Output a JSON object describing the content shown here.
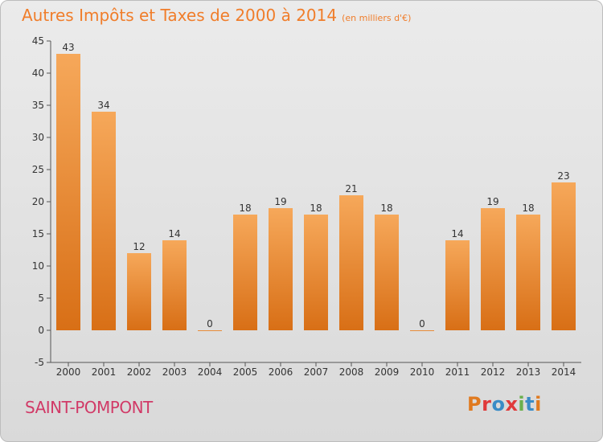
{
  "header": {
    "title": "Autres Impôts et Taxes de 2000 à 2014",
    "unit": "(en milliers d'€)"
  },
  "footer": {
    "town": "SAINT-POMPONT",
    "logo": "Proxiti"
  },
  "colors": {
    "title": "#f07d2a",
    "bar_top": "#f6a85a",
    "bar_bottom": "#d86f16",
    "town": "#d13a67",
    "background_top": "#ebebeb",
    "background_bottom": "#d9d9d9"
  },
  "chart_data": {
    "type": "bar",
    "title": "Autres Impôts et Taxes de 2000 à 2014",
    "subtitle": "(en milliers d'€)",
    "categories": [
      "2000",
      "2001",
      "2002",
      "2003",
      "2004",
      "2005",
      "2006",
      "2007",
      "2008",
      "2009",
      "2010",
      "2011",
      "2012",
      "2013",
      "2014"
    ],
    "values": [
      43,
      34,
      12,
      14,
      0,
      18,
      19,
      18,
      21,
      18,
      0,
      14,
      19,
      18,
      23
    ],
    "ylim": [
      -5,
      45
    ],
    "yticks": [
      -5,
      0,
      5,
      10,
      15,
      20,
      25,
      30,
      35,
      40,
      45
    ],
    "grid": false,
    "legend": "none"
  }
}
